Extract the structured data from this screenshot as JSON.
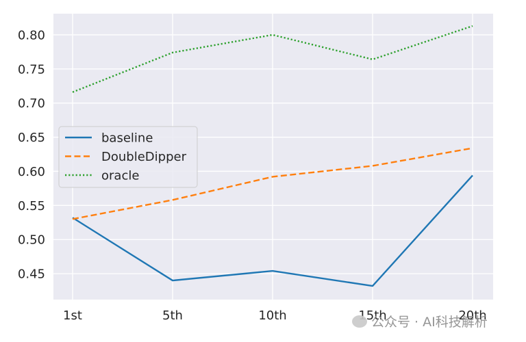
{
  "chart_data": {
    "type": "line",
    "categories": [
      "1st",
      "5th",
      "10th",
      "15th",
      "20th"
    ],
    "series": [
      {
        "name": "baseline",
        "color": "#1f77b4",
        "dash": "solid",
        "values": [
          0.532,
          0.44,
          0.454,
          0.432,
          0.594
        ]
      },
      {
        "name": "DoubleDipper",
        "color": "#ff7f0e",
        "dash": "dashed",
        "values": [
          0.53,
          0.558,
          0.592,
          0.608,
          0.634
        ]
      },
      {
        "name": "oracle",
        "color": "#2ca02c",
        "dash": "dotted",
        "values": [
          0.716,
          0.774,
          0.8,
          0.764,
          0.813
        ]
      }
    ],
    "yticks": [
      0.45,
      0.5,
      0.55,
      0.6,
      0.65,
      0.7,
      0.75,
      0.8
    ],
    "ytick_labels": [
      "0.45",
      "0.50",
      "0.55",
      "0.60",
      "0.65",
      "0.70",
      "0.75",
      "0.80"
    ],
    "ylim": [
      0.412,
      0.831
    ],
    "grid": true,
    "legend_position": "center-left",
    "background": "#eaeaf2"
  },
  "watermark": {
    "text": "公众号 · AI科技解析"
  }
}
